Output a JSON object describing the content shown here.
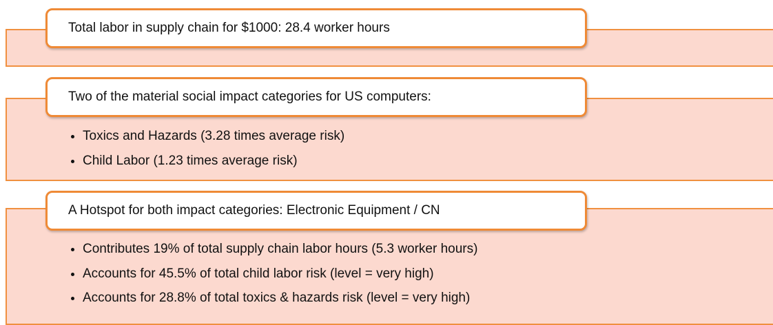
{
  "panels": [
    {
      "title": "Total labor in supply chain for $1000:  28.4 worker hours",
      "bullets": []
    },
    {
      "title": "Two of the material social impact categories for US computers:",
      "bullets": [
        "Toxics and Hazards (3.28 times average risk)",
        "Child Labor (1.23 times average risk)"
      ]
    },
    {
      "title": "A Hotspot for both impact categories: Electronic Equipment / CN",
      "bullets": [
        "Contributes 19% of total supply chain labor hours (5.3 worker hours)",
        "Accounts for 45.5% of total child labor risk (level = very high)",
        "Accounts for 28.8% of total toxics & hazards risk (level = very high)"
      ]
    }
  ]
}
